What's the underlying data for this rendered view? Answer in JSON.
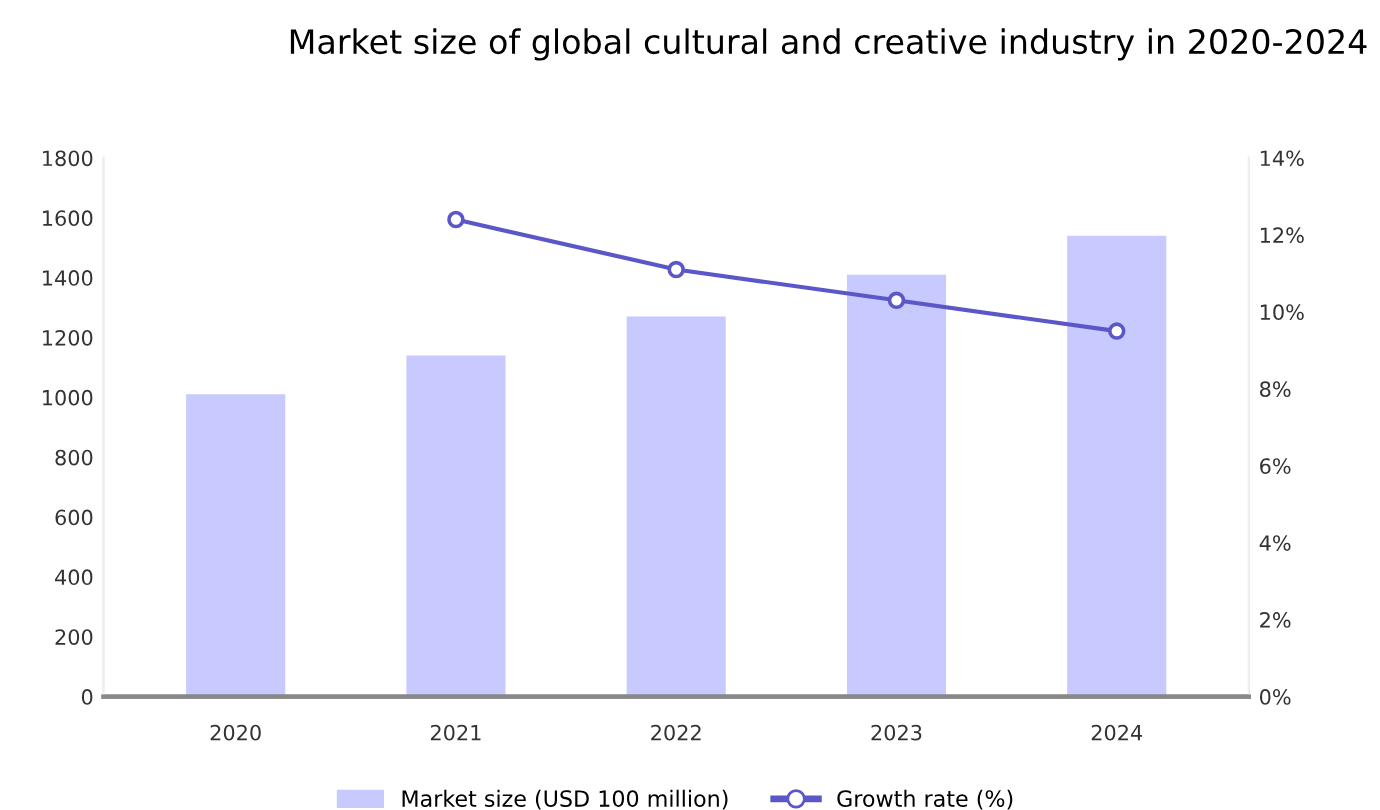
{
  "chart_data": {
    "type": "bar",
    "title": "Market size of global cultural and creative industry in 2020-2024",
    "categories": [
      "2020",
      "2021",
      "2022",
      "2023",
      "2024"
    ],
    "series": [
      {
        "name": "Market size (USD 100 million)",
        "color": "#c8caff",
        "values": [
          1010,
          1140,
          1270,
          1410,
          1540
        ]
      },
      {
        "name": "Growth rate (%)",
        "type": "line",
        "axis": "y2",
        "color": "#5b57c8",
        "values": [
          null,
          12.4,
          11.1,
          10.3,
          9.5
        ]
      }
    ],
    "ylim": [
      0,
      1800
    ],
    "yticks": [
      0,
      200,
      400,
      600,
      800,
      1000,
      1200,
      1400,
      1600,
      1800
    ],
    "y2lim": [
      0,
      14
    ],
    "y2ticks": [
      {
        "value": 0,
        "label": "0%"
      },
      {
        "value": 2,
        "label": "2%"
      },
      {
        "value": 4,
        "label": "4%"
      },
      {
        "value": 6,
        "label": "6%"
      },
      {
        "value": 8,
        "label": "8%"
      },
      {
        "value": 10,
        "label": "10%"
      },
      {
        "value": 12,
        "label": "12%"
      },
      {
        "value": 14,
        "label": "14%"
      }
    ],
    "grid": false,
    "legend": "bottom",
    "marker": "circle",
    "line_style": "solid"
  }
}
